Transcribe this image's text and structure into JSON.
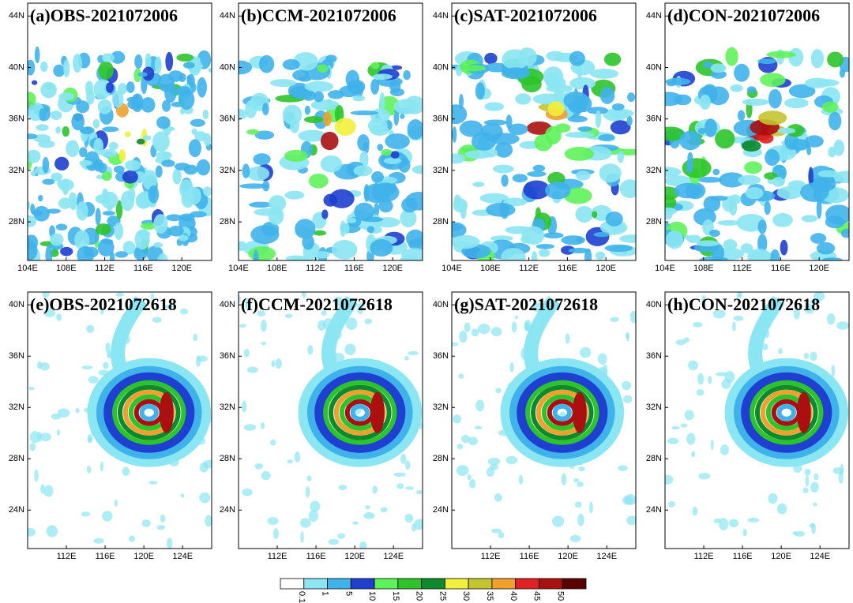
{
  "panels": [
    {
      "title": "(a)OBS-2021072006",
      "xlim": [
        104,
        123.1
      ],
      "ylim": [
        25,
        45
      ],
      "xticks": [
        {
          "value": 104,
          "label": "104E"
        },
        {
          "value": 108,
          "label": "108E"
        },
        {
          "value": 112,
          "label": "112E"
        },
        {
          "value": 116,
          "label": "116E"
        },
        {
          "value": 120,
          "label": "120E"
        }
      ],
      "yticks": [
        {
          "value": 28,
          "label": "28N"
        },
        {
          "value": 32,
          "label": "32N"
        },
        {
          "value": 36,
          "label": "36N"
        },
        {
          "value": 40,
          "label": "40N"
        },
        {
          "value": 44,
          "label": "44N"
        }
      ]
    },
    {
      "title": "(b)CCM-2021072006",
      "xlim": [
        104,
        123.1
      ],
      "ylim": [
        25,
        45
      ],
      "xticks": [
        {
          "value": 104,
          "label": "104E"
        },
        {
          "value": 108,
          "label": "108E"
        },
        {
          "value": 112,
          "label": "112E"
        },
        {
          "value": 116,
          "label": "116E"
        },
        {
          "value": 120,
          "label": "120E"
        }
      ],
      "yticks": [
        {
          "value": 28,
          "label": "28N"
        },
        {
          "value": 32,
          "label": "32N"
        },
        {
          "value": 36,
          "label": "36N"
        },
        {
          "value": 40,
          "label": "40N"
        },
        {
          "value": 44,
          "label": "44N"
        }
      ]
    },
    {
      "title": "(c)SAT-2021072006",
      "xlim": [
        104,
        123.1
      ],
      "ylim": [
        25,
        45
      ],
      "xticks": [
        {
          "value": 104,
          "label": "104E"
        },
        {
          "value": 108,
          "label": "108E"
        },
        {
          "value": 112,
          "label": "112E"
        },
        {
          "value": 116,
          "label": "116E"
        },
        {
          "value": 120,
          "label": "120E"
        }
      ],
      "yticks": [
        {
          "value": 28,
          "label": "28N"
        },
        {
          "value": 32,
          "label": "32N"
        },
        {
          "value": 36,
          "label": "36N"
        },
        {
          "value": 40,
          "label": "40N"
        },
        {
          "value": 44,
          "label": "44N"
        }
      ]
    },
    {
      "title": "(d)CON-2021072006",
      "xlim": [
        104,
        123.1
      ],
      "ylim": [
        25,
        45
      ],
      "xticks": [
        {
          "value": 104,
          "label": "104E"
        },
        {
          "value": 108,
          "label": "108E"
        },
        {
          "value": 112,
          "label": "112E"
        },
        {
          "value": 116,
          "label": "116E"
        },
        {
          "value": 120,
          "label": "120E"
        }
      ],
      "yticks": [
        {
          "value": 28,
          "label": "28N"
        },
        {
          "value": 32,
          "label": "32N"
        },
        {
          "value": 36,
          "label": "36N"
        },
        {
          "value": 40,
          "label": "40N"
        },
        {
          "value": 44,
          "label": "44N"
        }
      ]
    },
    {
      "title": "(e)OBS-2021072618",
      "xlim": [
        108,
        127
      ],
      "ylim": [
        21,
        41
      ],
      "xticks": [
        {
          "value": 112,
          "label": "112E"
        },
        {
          "value": 116,
          "label": "116E"
        },
        {
          "value": 120,
          "label": "120E"
        },
        {
          "value": 124,
          "label": "124E"
        }
      ],
      "yticks": [
        {
          "value": 24,
          "label": "24N"
        },
        {
          "value": 28,
          "label": "28N"
        },
        {
          "value": 32,
          "label": "32N"
        },
        {
          "value": 36,
          "label": "36N"
        },
        {
          "value": 40,
          "label": "40N"
        }
      ]
    },
    {
      "title": "(f)CCM-2021072618",
      "xlim": [
        108,
        127
      ],
      "ylim": [
        21,
        41
      ],
      "xticks": [
        {
          "value": 112,
          "label": "112E"
        },
        {
          "value": 116,
          "label": "116E"
        },
        {
          "value": 120,
          "label": "120E"
        },
        {
          "value": 124,
          "label": "124E"
        }
      ],
      "yticks": [
        {
          "value": 24,
          "label": "24N"
        },
        {
          "value": 28,
          "label": "28N"
        },
        {
          "value": 32,
          "label": "32N"
        },
        {
          "value": 36,
          "label": "36N"
        },
        {
          "value": 40,
          "label": "40N"
        }
      ]
    },
    {
      "title": "(g)SAT-2021072618",
      "xlim": [
        108,
        127
      ],
      "ylim": [
        21,
        41
      ],
      "xticks": [
        {
          "value": 112,
          "label": "112E"
        },
        {
          "value": 116,
          "label": "116E"
        },
        {
          "value": 120,
          "label": "120E"
        },
        {
          "value": 124,
          "label": "124E"
        }
      ],
      "yticks": [
        {
          "value": 24,
          "label": "24N"
        },
        {
          "value": 28,
          "label": "28N"
        },
        {
          "value": 32,
          "label": "32N"
        },
        {
          "value": 36,
          "label": "36N"
        },
        {
          "value": 40,
          "label": "40N"
        }
      ]
    },
    {
      "title": "(h)CON-2021072618",
      "xlim": [
        108,
        127
      ],
      "ylim": [
        21,
        41
      ],
      "xticks": [
        {
          "value": 112,
          "label": "112E"
        },
        {
          "value": 116,
          "label": "116E"
        },
        {
          "value": 120,
          "label": "120E"
        },
        {
          "value": 124,
          "label": "124E"
        }
      ],
      "yticks": [
        {
          "value": 24,
          "label": "24N"
        },
        {
          "value": 28,
          "label": "28N"
        },
        {
          "value": 32,
          "label": "32N"
        },
        {
          "value": 36,
          "label": "36N"
        },
        {
          "value": 40,
          "label": "40N"
        }
      ]
    }
  ],
  "colorbar": {
    "levels": [
      0.1,
      1,
      5,
      10,
      15,
      20,
      25,
      30,
      35,
      40,
      45,
      50
    ],
    "colors": [
      "#ffffff",
      "#8ae6f2",
      "#3fb2ea",
      "#1e3fcf",
      "#5ef25a",
      "#2cc42a",
      "#0c8a2c",
      "#f2f03c",
      "#c4c430",
      "#f0a02c",
      "#e02222",
      "#aa1010",
      "#5a0000"
    ]
  }
}
